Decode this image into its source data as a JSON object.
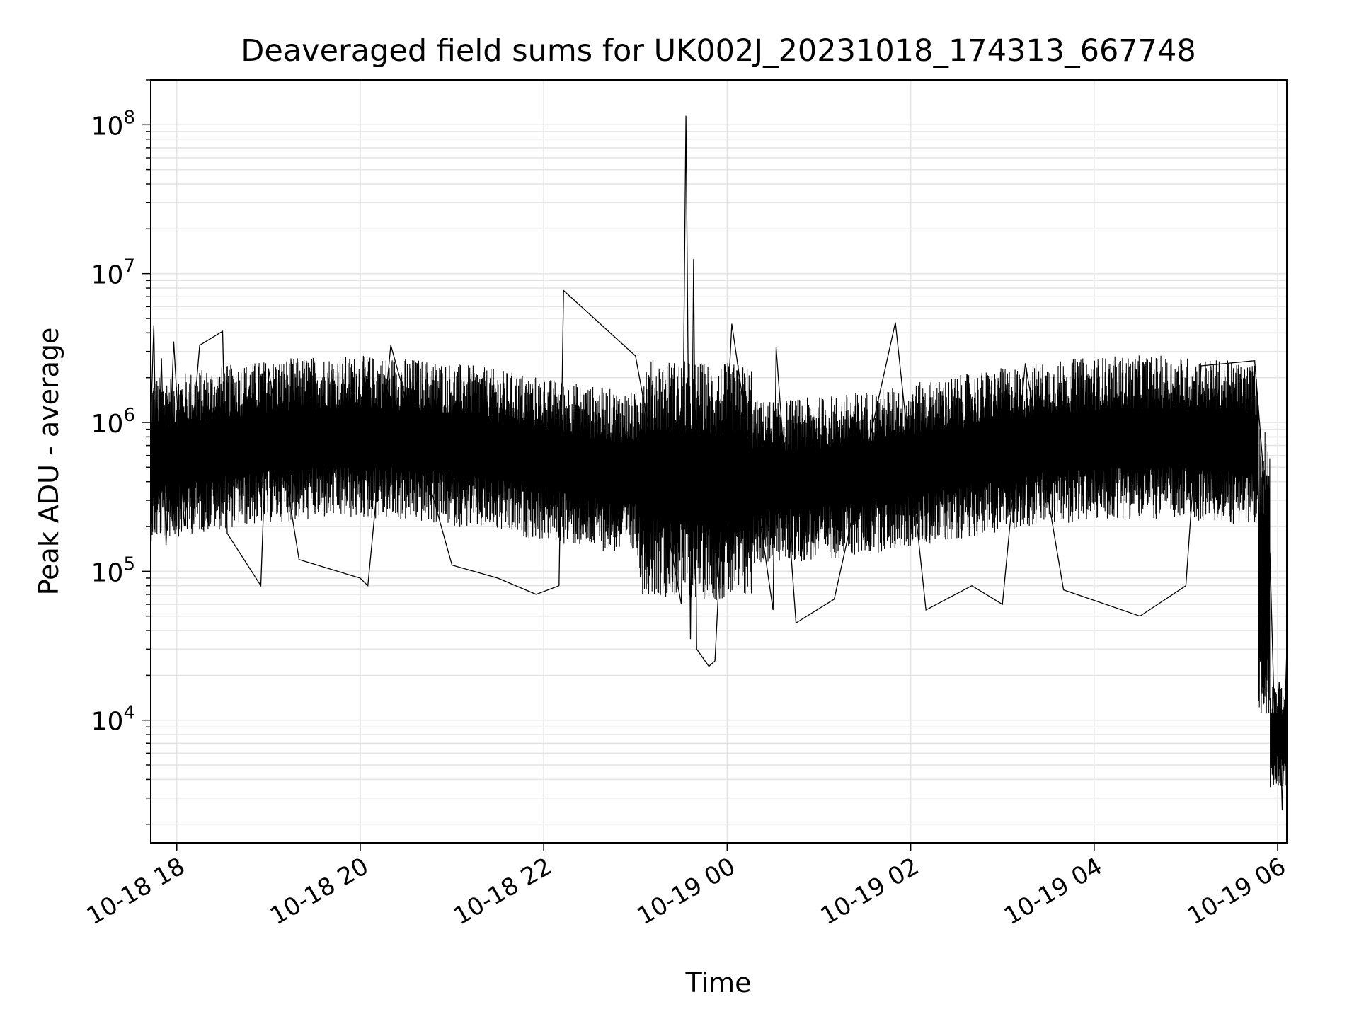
{
  "chart_data": {
    "type": "line",
    "title": "Deaveraged field sums for UK002J_20231018_174313_667748",
    "xlabel": "Time",
    "ylabel": "Peak ADU - average",
    "yscale": "log",
    "ylim": [
      1500,
      200000000
    ],
    "xlim": [
      "2023-10-18 17:43",
      "2023-10-19 06:06"
    ],
    "grid": true,
    "line_color": "#000000",
    "grid_color": "#e5e5e5",
    "x_ticks": [
      {
        "t": "2023-10-18 18:00",
        "label": "10-18 18"
      },
      {
        "t": "2023-10-18 20:00",
        "label": "10-18 20"
      },
      {
        "t": "2023-10-18 22:00",
        "label": "10-18 22"
      },
      {
        "t": "2023-10-19 00:00",
        "label": "10-19 00"
      },
      {
        "t": "2023-10-19 02:00",
        "label": "10-19 02"
      },
      {
        "t": "2023-10-19 04:00",
        "label": "10-19 04"
      },
      {
        "t": "2023-10-19 06:00",
        "label": "10-19 06"
      }
    ],
    "y_ticks": [
      {
        "value": 10000,
        "base": "10",
        "exp": "4"
      },
      {
        "value": 100000,
        "base": "10",
        "exp": "5"
      },
      {
        "value": 1000000,
        "base": "10",
        "exp": "6"
      },
      {
        "value": 10000000,
        "base": "10",
        "exp": "7"
      },
      {
        "value": 100000000,
        "base": "10",
        "exp": "8"
      }
    ],
    "series": [
      {
        "points": [
          [
            "2023-10-18 17:43",
            1000000
          ],
          [
            "2023-10-18 17:45",
            4500000
          ],
          [
            "2023-10-18 17:47",
            250000
          ],
          [
            "2023-10-18 17:50",
            2700000
          ],
          [
            "2023-10-18 17:53",
            150000
          ],
          [
            "2023-10-18 17:58",
            3500000
          ],
          [
            "2023-10-18 18:05",
            200000
          ],
          [
            "2023-10-18 18:15",
            3300000
          ],
          [
            "2023-10-18 18:30",
            4100000
          ],
          [
            "2023-10-18 18:33",
            180000
          ],
          [
            "2023-10-18 18:55",
            80000
          ],
          [
            "2023-10-18 19:00",
            2300000
          ],
          [
            "2023-10-18 19:20",
            120000
          ],
          [
            "2023-10-18 20:00",
            90000
          ],
          [
            "2023-10-18 20:05",
            80000
          ],
          [
            "2023-10-18 20:20",
            3300000
          ],
          [
            "2023-10-18 21:00",
            110000
          ],
          [
            "2023-10-18 21:30",
            90000
          ],
          [
            "2023-10-18 21:55",
            70000
          ],
          [
            "2023-10-18 22:10",
            80000
          ],
          [
            "2023-10-18 22:13",
            7700000
          ],
          [
            "2023-10-18 23:00",
            2800000
          ],
          [
            "2023-10-18 23:30",
            60000
          ],
          [
            "2023-10-18 23:33",
            115000000
          ],
          [
            "2023-10-18 23:36",
            35000
          ],
          [
            "2023-10-18 23:38",
            12500000
          ],
          [
            "2023-10-18 23:40",
            30000
          ],
          [
            "2023-10-18 23:48",
            23000
          ],
          [
            "2023-10-18 23:52",
            25000
          ],
          [
            "2023-10-19 00:03",
            4600000
          ],
          [
            "2023-10-19 00:30",
            55000
          ],
          [
            "2023-10-19 00:32",
            3200000
          ],
          [
            "2023-10-19 00:45",
            45000
          ],
          [
            "2023-10-19 01:10",
            65000
          ],
          [
            "2023-10-19 01:50",
            4700000
          ],
          [
            "2023-10-19 02:10",
            55000
          ],
          [
            "2023-10-19 02:40",
            80000
          ],
          [
            "2023-10-19 03:00",
            60000
          ],
          [
            "2023-10-19 03:15",
            2500000
          ],
          [
            "2023-10-19 03:40",
            75000
          ],
          [
            "2023-10-19 04:30",
            50000
          ],
          [
            "2023-10-19 05:00",
            80000
          ],
          [
            "2023-10-19 05:10",
            2400000
          ],
          [
            "2023-10-19 05:45",
            2600000
          ],
          [
            "2023-10-19 05:55",
            130000
          ],
          [
            "2023-10-19 05:59",
            4000
          ],
          [
            "2023-10-19 06:01",
            18000
          ],
          [
            "2023-10-19 06:03",
            2500
          ],
          [
            "2023-10-19 06:06",
            30000
          ]
        ]
      }
    ]
  }
}
